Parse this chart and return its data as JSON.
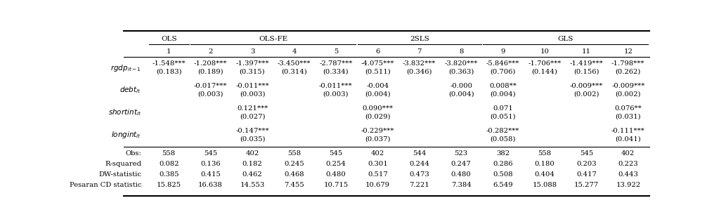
{
  "col_numbers": [
    "1",
    "2",
    "3",
    "4",
    "5",
    "6",
    "7",
    "8",
    "9",
    "10",
    "11",
    "12"
  ],
  "groups": [
    {
      "label": "OLS",
      "start": 0,
      "end": 0
    },
    {
      "label": "OLS-FE",
      "start": 1,
      "end": 4
    },
    {
      "label": "2SLS",
      "start": 5,
      "end": 7
    },
    {
      "label": "GLS",
      "start": 8,
      "end": 11
    }
  ],
  "var_labels": [
    "rgdp",
    "debt",
    "shortint",
    "longint"
  ],
  "var_subscripts": [
    "it-1",
    "it",
    "it",
    "it"
  ],
  "cells": [
    [
      "-1.548***",
      "-1.208***",
      "-1.397***",
      "-3.450***",
      "-2.787***",
      "-4.075***",
      "-3.832***",
      "-3.820***",
      "-5.846***",
      "-1.706***",
      "-1.419***",
      "-1.798***"
    ],
    [
      "(0.183)",
      "(0.189)",
      "(0.315)",
      "(0.314)",
      "(0.334)",
      "(0.511)",
      "(0.346)",
      "(0.363)",
      "(0.706)",
      "(0.144)",
      "(0.156)",
      "(0.262)"
    ],
    [
      "",
      "-0.017***",
      "-0.011***",
      "",
      "-0.011***",
      "-0.004",
      "",
      "-0.000",
      "0.008**",
      "",
      "-0.009***",
      "-0.009***"
    ],
    [
      "",
      "(0.003)",
      "(0.003)",
      "",
      "(0.003)",
      "(0.004)",
      "",
      "(0.004)",
      "(0.004)",
      "",
      "(0.002)",
      "(0.002)"
    ],
    [
      "",
      "",
      "0.121***",
      "",
      "",
      "0.090***",
      "",
      "",
      "0.071",
      "",
      "",
      "0.076**"
    ],
    [
      "",
      "",
      "(0.027)",
      "",
      "",
      "(0.029)",
      "",
      "",
      "(0.051)",
      "",
      "",
      "(0.031)"
    ],
    [
      "",
      "",
      "-0.147***",
      "",
      "",
      "-0.229***",
      "",
      "",
      "-0.282***",
      "",
      "",
      "-0.111***"
    ],
    [
      "",
      "",
      "(0.035)",
      "",
      "",
      "(0.037)",
      "",
      "",
      "(0.058)",
      "",
      "",
      "(0.041)"
    ]
  ],
  "stats_labels": [
    "Obs:",
    "R-squared",
    "DW-statistic",
    "Pesaran CD statistic"
  ],
  "stats": [
    [
      "558",
      "545",
      "402",
      "558",
      "545",
      "402",
      "544",
      "523",
      "382",
      "558",
      "545",
      "402"
    ],
    [
      "0.082",
      "0.136",
      "0.182",
      "0.245",
      "0.254",
      "0.301",
      "0.244",
      "0.247",
      "0.286",
      "0.180",
      "0.203",
      "0.223"
    ],
    [
      "0.385",
      "0.415",
      "0.462",
      "0.468",
      "0.480",
      "0.517",
      "0.473",
      "0.480",
      "0.508",
      "0.404",
      "0.417",
      "0.443"
    ],
    [
      "15.825",
      "16.638",
      "14.553",
      "7.455",
      "10.715",
      "10.679",
      "7.221",
      "7.384",
      "6.549",
      "15.088",
      "15.277",
      "13.922"
    ]
  ],
  "bg_color": "#ffffff",
  "text_color": "#000000",
  "font_size": 7.2,
  "label_font_size": 7.5
}
